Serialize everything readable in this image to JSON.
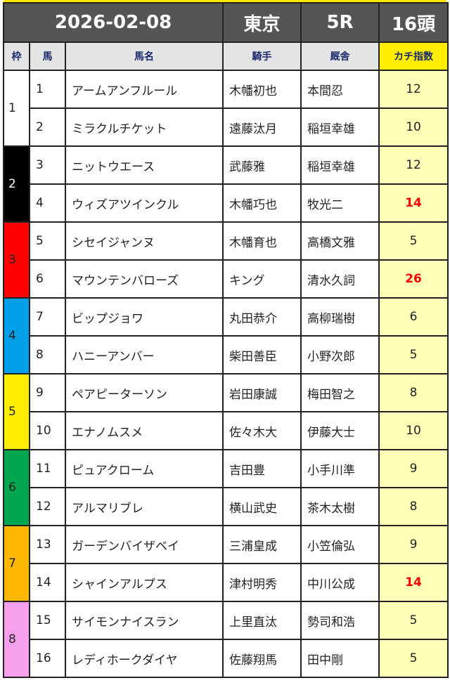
{
  "header": {
    "date": "2026-02-08",
    "venue": "東京",
    "race": "5R",
    "runners": "16頭"
  },
  "columns": {
    "frame": "枠",
    "num": "馬",
    "name": "馬名",
    "jockey": "騎手",
    "trainer": "厩舎",
    "score": "カチ指数"
  },
  "frames": [
    {
      "label": "1",
      "color": "#ffffff",
      "text": "#222222"
    },
    {
      "label": "2",
      "color": "#000000",
      "text": "#ffffff"
    },
    {
      "label": "3",
      "color": "#ff0000",
      "text": "#222222"
    },
    {
      "label": "4",
      "color": "#00a0e9",
      "text": "#222222"
    },
    {
      "label": "5",
      "color": "#ffee00",
      "text": "#222222"
    },
    {
      "label": "6",
      "color": "#00a650",
      "text": "#222222"
    },
    {
      "label": "7",
      "color": "#ffb800",
      "text": "#222222"
    },
    {
      "label": "8",
      "color": "#f7a0ee",
      "text": "#222222"
    }
  ],
  "highlight_color": "#ff0000",
  "horses": [
    {
      "num": "1",
      "name": "アームアンフルール",
      "jockey": "木幡初也",
      "trainer": "本間忍",
      "score": "12",
      "hi": false
    },
    {
      "num": "2",
      "name": "ミラクルチケット",
      "jockey": "遠藤汰月",
      "trainer": "稲垣幸雄",
      "score": "10",
      "hi": false
    },
    {
      "num": "3",
      "name": "ニットウエース",
      "jockey": "武藤雅",
      "trainer": "稲垣幸雄",
      "score": "12",
      "hi": false
    },
    {
      "num": "4",
      "name": "ウィズアツインクル",
      "jockey": "木幡巧也",
      "trainer": "牧光二",
      "score": "14",
      "hi": true
    },
    {
      "num": "5",
      "name": "シセイジャンヌ",
      "jockey": "木幡育也",
      "trainer": "高橋文雅",
      "score": "5",
      "hi": false
    },
    {
      "num": "6",
      "name": "マウンテンバローズ",
      "jockey": "キング",
      "trainer": "清水久詞",
      "score": "26",
      "hi": true
    },
    {
      "num": "7",
      "name": "ビップジョワ",
      "jockey": "丸田恭介",
      "trainer": "高柳瑞樹",
      "score": "6",
      "hi": false
    },
    {
      "num": "8",
      "name": "ハニーアンバー",
      "jockey": "柴田善臣",
      "trainer": "小野次郎",
      "score": "5",
      "hi": false
    },
    {
      "num": "9",
      "name": "ペアピーターソン",
      "jockey": "岩田康誠",
      "trainer": "梅田智之",
      "score": "8",
      "hi": false
    },
    {
      "num": "10",
      "name": "エナノムスメ",
      "jockey": "佐々木大",
      "trainer": "伊藤大士",
      "score": "10",
      "hi": false
    },
    {
      "num": "11",
      "name": "ピュアクローム",
      "jockey": "吉田豊",
      "trainer": "小手川準",
      "score": "9",
      "hi": false
    },
    {
      "num": "12",
      "name": "アルマリブレ",
      "jockey": "横山武史",
      "trainer": "茶木太樹",
      "score": "8",
      "hi": false
    },
    {
      "num": "13",
      "name": "ガーデンバイザベイ",
      "jockey": "三浦皇成",
      "trainer": "小笠倫弘",
      "score": "9",
      "hi": false
    },
    {
      "num": "14",
      "name": "シャインアルプス",
      "jockey": "津村明秀",
      "trainer": "中川公成",
      "score": "14",
      "hi": true
    },
    {
      "num": "15",
      "name": "サイモンナイスラン",
      "jockey": "上里直汰",
      "trainer": "勢司和浩",
      "score": "5",
      "hi": false
    },
    {
      "num": "16",
      "name": "レディホークダイヤ",
      "jockey": "佐藤翔馬",
      "trainer": "田中剛",
      "score": "5",
      "hi": false
    }
  ]
}
